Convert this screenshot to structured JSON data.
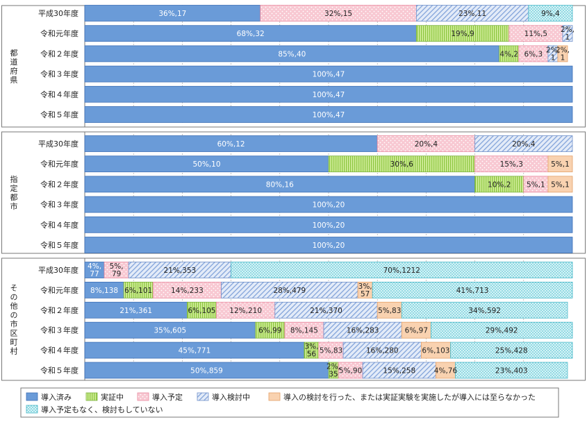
{
  "chart_data": {
    "type": "bar",
    "orientation": "horizontal",
    "stacked": "percent",
    "title": "",
    "xlabel": "",
    "ylabel": "",
    "xlim": [
      0,
      100
    ],
    "grid": true,
    "legend_position": "bottom",
    "series": [
      {
        "name": "導入済み",
        "color": "#6b9bd6",
        "pattern": "solid"
      },
      {
        "name": "実証中",
        "color": "#b5e06f",
        "pattern": "vertical-stripes"
      },
      {
        "name": "導入予定",
        "color": "#f7c7d1",
        "pattern": "dots"
      },
      {
        "name": "導入検討中",
        "color": "#dfe8f7",
        "pattern": "diagonal-stripes"
      },
      {
        "name": "導入の検討を行った、または実証実験を実施したが導入には至らなかった",
        "color": "#f9d3b3",
        "pattern": "solid"
      },
      {
        "name": "導入予定もなく、検討もしていない",
        "color": "#c9eef3",
        "pattern": "dots"
      }
    ],
    "groups": [
      {
        "name": "都道府県",
        "rows": [
          {
            "category": "平成30年度",
            "values": [
              36,
              0,
              32,
              23,
              0,
              9
            ],
            "labels": [
              "36%,17",
              "",
              "32%,15",
              "23%,11",
              "",
              "9%,4"
            ]
          },
          {
            "category": "令和元年度",
            "values": [
              68,
              19,
              11,
              2,
              0,
              0
            ],
            "labels": [
              "68%,32",
              "19%,9",
              "11%,5",
              "2%,\n1",
              "",
              ""
            ]
          },
          {
            "category": "令和２年度",
            "values": [
              85,
              4,
              6,
              2,
              2,
              0
            ],
            "labels": [
              "85%,40",
              "4%,2",
              "6%,3",
              "2%,\n1",
              "2%,\n1",
              ""
            ]
          },
          {
            "category": "令和３年度",
            "values": [
              100,
              0,
              0,
              0,
              0,
              0
            ],
            "labels": [
              "100%,47",
              "",
              "",
              "",
              "",
              ""
            ]
          },
          {
            "category": "令和４年度",
            "values": [
              100,
              0,
              0,
              0,
              0,
              0
            ],
            "labels": [
              "100%,47",
              "",
              "",
              "",
              "",
              ""
            ]
          },
          {
            "category": "令和５年度",
            "values": [
              100,
              0,
              0,
              0,
              0,
              0
            ],
            "labels": [
              "100%,47",
              "",
              "",
              "",
              "",
              ""
            ]
          }
        ]
      },
      {
        "name": "指定都市",
        "rows": [
          {
            "category": "平成30年度",
            "values": [
              60,
              0,
              20,
              20,
              0,
              0
            ],
            "labels": [
              "60%,12",
              "",
              "20%,4",
              "20%,4",
              "",
              ""
            ]
          },
          {
            "category": "令和元年度",
            "values": [
              50,
              30,
              15,
              0,
              5,
              0
            ],
            "labels": [
              "50%,10",
              "30%,6",
              "15%,3",
              "",
              "5%,1",
              ""
            ]
          },
          {
            "category": "令和２年度",
            "values": [
              80,
              10,
              5,
              0,
              5,
              0
            ],
            "labels": [
              "80%,16",
              "10%,2",
              "5%,1",
              "",
              "5%,1",
              ""
            ]
          },
          {
            "category": "令和３年度",
            "values": [
              100,
              0,
              0,
              0,
              0,
              0
            ],
            "labels": [
              "100%,20",
              "",
              "",
              "",
              "",
              ""
            ]
          },
          {
            "category": "令和４年度",
            "values": [
              100,
              0,
              0,
              0,
              0,
              0
            ],
            "labels": [
              "100%,20",
              "",
              "",
              "",
              "",
              ""
            ]
          },
          {
            "category": "令和５年度",
            "values": [
              100,
              0,
              0,
              0,
              0,
              0
            ],
            "labels": [
              "100%,20",
              "",
              "",
              "",
              "",
              ""
            ]
          }
        ]
      },
      {
        "name": "その他の市区町村",
        "rows": [
          {
            "category": "平成30年度",
            "values": [
              4,
              0,
              5,
              21,
              0,
              70
            ],
            "labels": [
              "4%,\n77",
              "",
              "5%,\n79",
              "21%,353",
              "",
              "70%,1212"
            ]
          },
          {
            "category": "令和元年度",
            "values": [
              8,
              6,
              14,
              28,
              3,
              41
            ],
            "labels": [
              "8%,138",
              "6%,101",
              "14%,233",
              "28%,479",
              "3%,\n57",
              "41%,713"
            ]
          },
          {
            "category": "令和２年度",
            "values": [
              21,
              6,
              12,
              21,
              5,
              34
            ],
            "labels": [
              "21%,361",
              "6%,105",
              "12%,210",
              "21%,370",
              "5%,83",
              "34%,592"
            ]
          },
          {
            "category": "令和３年度",
            "values": [
              35,
              6,
              8,
              16,
              6,
              29
            ],
            "labels": [
              "35%,605",
              "6%,99",
              "8%,145",
              "16%,283",
              "6%,97",
              "29%,492"
            ]
          },
          {
            "category": "令和４年度",
            "values": [
              45,
              3,
              5,
              16,
              6,
              25
            ],
            "labels": [
              "45%,771",
              "3%,\n56",
              "5%,83",
              "16%,280",
              "6%,103",
              "25%,428"
            ]
          },
          {
            "category": "令和５年度",
            "values": [
              50,
              2,
              5,
              15,
              4,
              23
            ],
            "labels": [
              "50%,859",
              "2%,\n35",
              "5%,90",
              "15%,258",
              "4%,76",
              "23%,403"
            ]
          }
        ]
      }
    ]
  }
}
